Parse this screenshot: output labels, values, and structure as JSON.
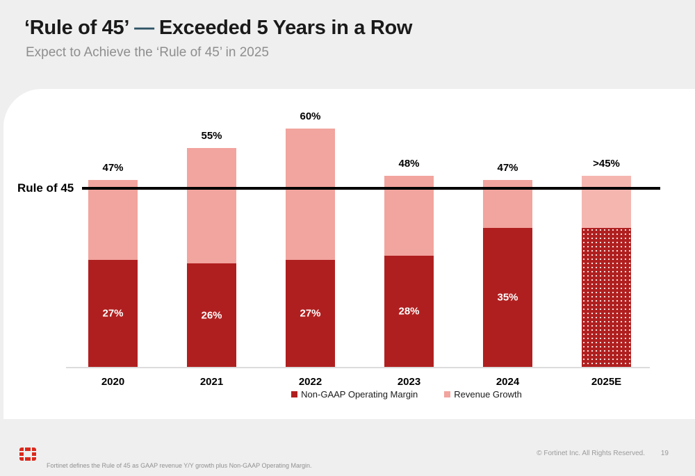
{
  "header": {
    "title_prefix": "‘Rule of 45’",
    "title_dash": "—",
    "title_suffix": "Exceeded 5 Years in a Row",
    "subtitle": "Expect to Achieve the ‘Rule of 45’ in 2025"
  },
  "chart_data": {
    "type": "bar",
    "stacked": true,
    "title": "Rule of 45 — stacked totals by year",
    "categories": [
      "2020",
      "2021",
      "2022",
      "2023",
      "2024",
      "2025E"
    ],
    "series": [
      {
        "name": "Non-GAAP Operating Margin",
        "color": "#B01F1F",
        "values": [
          27,
          26,
          27,
          28,
          35,
          35
        ],
        "labels": [
          "27%",
          "26%",
          "27%",
          "28%",
          "35%",
          ""
        ]
      },
      {
        "name": "Revenue Growth",
        "color": "#F2A49E",
        "values": [
          20,
          29,
          33,
          20,
          12,
          13
        ],
        "labels": [
          "",
          "",
          "",
          "",
          "",
          ""
        ]
      }
    ],
    "total_labels": [
      "47%",
      "55%",
      "60%",
      "48%",
      "47%",
      ">45%"
    ],
    "estimated_category": "2025E",
    "reference_line": {
      "label": "Rule of 45",
      "value": 45
    },
    "ylim": [
      0,
      70
    ],
    "grid": false,
    "legend_position": "bottom",
    "legend": [
      {
        "label": "Non-GAAP Operating Margin",
        "color": "#B01F1F"
      },
      {
        "label": "Revenue Growth",
        "color": "#F2A49E"
      }
    ]
  },
  "footer": {
    "footnote": "Fortinet defines the Rule of 45 as GAAP revenue Y/Y growth plus Non-GAAP Operating Margin.",
    "copyright": "© Fortinet Inc. All Rights Reserved.",
    "page_number": "19",
    "logo_name": "fortinet-logo"
  },
  "colors": {
    "background": "#EFEFEF",
    "card": "#FFFFFF",
    "margin_red": "#B01F1F",
    "growth_pink": "#F2A49E",
    "title_dash_blue": "#2F5366",
    "brand_red": "#DA291C"
  }
}
